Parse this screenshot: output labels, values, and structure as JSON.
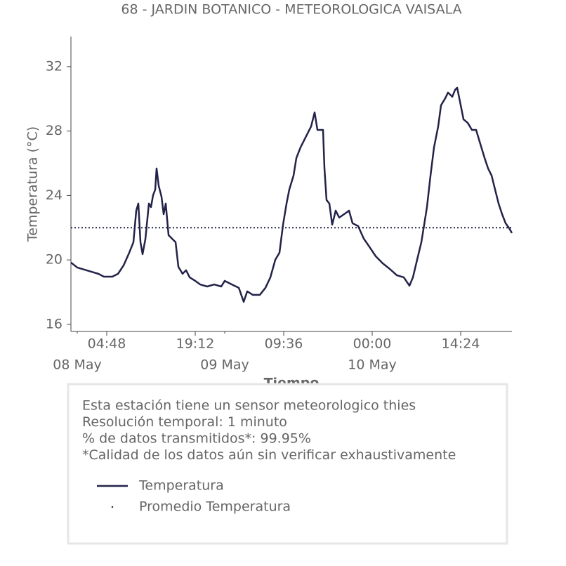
{
  "chart_data": {
    "type": "line",
    "title": "68 - JARDIN BOTANICO - METEOROLOGICA VAISALA",
    "ylabel": "Temperatura (°C)",
    "xlabel": "Tiempo",
    "x": [
      -1.03,
      0,
      1.14,
      2.29,
      3.43,
      4.34,
      5.71,
      6.63,
      7.54,
      8.46,
      9.14,
      9.6,
      9.94,
      10.29,
      10.63,
      11.09,
      11.66,
      12,
      12.34,
      12.69,
      12.91,
      13.26,
      13.71,
      14.06,
      14.4,
      14.86,
      15.43,
      16,
      16.46,
      17.14,
      17.71,
      18.29,
      19.2,
      20,
      21.14,
      22.29,
      23.43,
      24,
      25.14,
      26.29,
      27.09,
      27.66,
      28.57,
      29.71,
      30.63,
      31.43,
      32.23,
      32.91,
      33.49,
      34.06,
      34.51,
      35.2,
      35.66,
      36.34,
      36.91,
      37.49,
      38.06,
      38.63,
      39.09,
      39.66,
      40,
      40.23,
      40.57,
      41.03,
      41.49,
      42.06,
      42.63,
      43.43,
      44.23,
      44.8,
      45.71,
      46.63,
      47.43,
      48.57,
      49.71,
      50.86,
      52,
      53.14,
      54.06,
      54.63,
      55.31,
      56,
      56.46,
      56.91,
      57.49,
      58.06,
      58.74,
      59.2,
      59.89,
      60.34,
      61.03,
      61.49,
      61.83,
      62.29,
      62.86,
      63.54,
      64.23,
      64.91,
      65.6,
      66.29,
      66.86,
      67.43,
      68,
      68.57,
      69.14,
      69.71,
      70.29,
      70.74
    ],
    "series": [
      {
        "name": "Temperatura",
        "color": "#23234a",
        "values": [
          19.84,
          19.53,
          19.4,
          19.27,
          19.14,
          18.96,
          18.96,
          19.14,
          19.66,
          20.45,
          21.1,
          23.06,
          23.5,
          21.1,
          20.36,
          21.3,
          23.5,
          23.28,
          24.02,
          24.37,
          25.68,
          24.59,
          23.93,
          22.84,
          23.5,
          21.54,
          21.32,
          21.1,
          19.57,
          19.14,
          19.36,
          18.92,
          18.7,
          18.48,
          18.35,
          18.48,
          18.35,
          18.7,
          18.48,
          18.27,
          17.4,
          18.05,
          17.83,
          17.83,
          18.27,
          18.92,
          20.01,
          20.45,
          22.19,
          23.5,
          24.37,
          25.24,
          26.33,
          26.99,
          27.42,
          27.86,
          28.29,
          29.16,
          28.07,
          28.07,
          28.07,
          25.68,
          23.72,
          23.5,
          22.19,
          23.06,
          22.63,
          22.84,
          23.06,
          22.28,
          22.1,
          21.32,
          20.88,
          20.23,
          19.79,
          19.44,
          19.05,
          18.92,
          18.4,
          18.92,
          20.01,
          21.1,
          22.19,
          23.28,
          25.24,
          26.99,
          28.29,
          29.6,
          30.04,
          30.39,
          30.13,
          30.56,
          30.69,
          29.82,
          28.73,
          28.51,
          28.07,
          28.07,
          27.2,
          26.33,
          25.68,
          25.24,
          24.37,
          23.5,
          22.84,
          22.28,
          21.97,
          21.67
        ]
      }
    ],
    "average": {
      "name": "Promedio Temperatura",
      "value": 22.0,
      "color": "#23234a"
    },
    "xlim": [
      -1.03,
      70.74
    ],
    "xticks": [
      {
        "value": 4.8,
        "label": "04:48"
      },
      {
        "value": 19.2,
        "label": "19:12"
      },
      {
        "value": 33.6,
        "label": "09:36"
      },
      {
        "value": 48,
        "label": "00:00"
      },
      {
        "value": 62.4,
        "label": "14:24"
      }
    ],
    "date_ticks": [
      {
        "value": 0,
        "label": "08 May"
      },
      {
        "value": 24,
        "label": "09 May"
      },
      {
        "value": 48,
        "label": "10 May"
      }
    ],
    "ylim": [
      15.56,
      33.87
    ],
    "yticks": [
      16,
      20,
      24,
      28,
      32
    ],
    "info": [
      "Esta estación tiene un sensor meteorologico thies",
      "Resolución temporal: 1 minuto",
      "% de datos transmitidos*: 99.95%",
      "*Calidad de los datos aún sin verificar exhaustivamente"
    ]
  }
}
